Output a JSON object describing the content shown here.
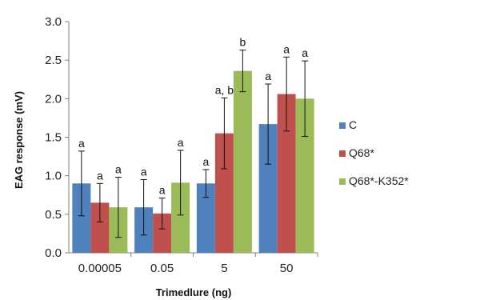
{
  "chart_data": {
    "type": "bar",
    "title": "",
    "xlabel": "Trimedlure (ng)",
    "ylabel": "EAG response (mV)",
    "ylim": [
      0,
      3.0
    ],
    "yticks": [
      "0.0",
      "0.5",
      "1.0",
      "1.5",
      "2.0",
      "2.5",
      "3.0"
    ],
    "categories": [
      "0.00005",
      "0.05",
      "5",
      "50"
    ],
    "grid": false,
    "legend_position": "right",
    "series": [
      {
        "name": "C",
        "color": "#4f81bd",
        "values": [
          0.9,
          0.59,
          0.9,
          1.67
        ],
        "errors": [
          0.42,
          0.36,
          0.18,
          0.52
        ],
        "labels": [
          "a",
          "a",
          "a",
          "a"
        ]
      },
      {
        "name": "Q68*",
        "color": "#c0504d",
        "values": [
          0.65,
          0.51,
          1.55,
          2.06
        ],
        "errors": [
          0.25,
          0.2,
          0.46,
          0.48
        ],
        "labels": [
          "a",
          "a",
          "a, b",
          "a"
        ]
      },
      {
        "name": "Q68*-K352*",
        "color": "#9bbb59",
        "values": [
          0.59,
          0.91,
          2.36,
          2.0
        ],
        "errors": [
          0.39,
          0.42,
          0.27,
          0.49
        ],
        "labels": [
          "a",
          "a",
          "b",
          "a"
        ]
      }
    ]
  }
}
